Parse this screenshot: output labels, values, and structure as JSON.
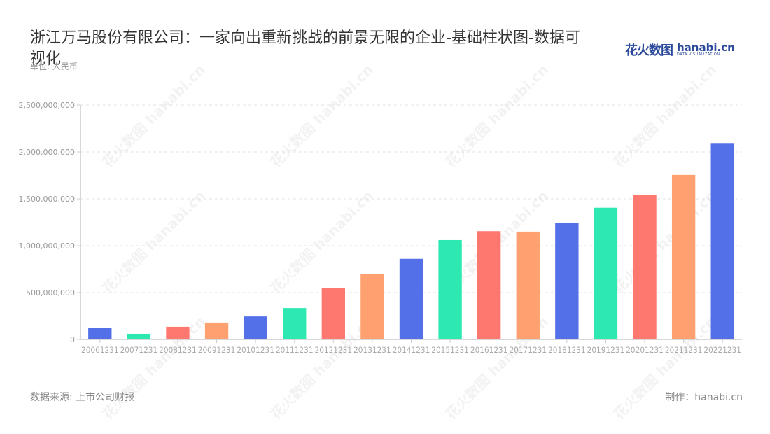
{
  "header": {
    "title": "浙江万马股份有限公司：一家向出重新挑战的前景无限的企业-基础柱状图-数据可视化",
    "unit": "单位: 人民币"
  },
  "logo": {
    "cn": "花火数图",
    "en": "hanabi.cn",
    "tagline": "DATA VISUALIZATION"
  },
  "footer": {
    "source": "数据来源: 上市公司财报",
    "maker": "制作：hanabi.cn"
  },
  "watermark": "花火数图 hanabi.cn",
  "colors": [
    "#5470e8",
    "#2de8b0",
    "#ff7870",
    "#ffa070"
  ],
  "chart_data": {
    "type": "bar",
    "title": "浙江万马股份有限公司：一家向出重新挑战的前景无限的企业-基础柱状图-数据可视化",
    "xlabel": "",
    "ylabel": "单位: 人民币",
    "ylim": [
      0,
      2500000000
    ],
    "yticks": [
      0,
      500000000,
      1000000000,
      1500000000,
      2000000000,
      2500000000
    ],
    "ytick_labels": [
      "0",
      "500,000,000",
      "1,000,000,000",
      "1,500,000,000",
      "2,000,000,000",
      "2,500,000,000"
    ],
    "grid": true,
    "legend": "none",
    "categories": [
      "20061231",
      "20071231",
      "20081231",
      "20091231",
      "20101231",
      "20111231",
      "20121231",
      "20131231",
      "20141231",
      "20151231",
      "20161231",
      "20171231",
      "20181231",
      "20191231",
      "20201231",
      "20211231",
      "20221231"
    ],
    "values": [
      120000000,
      60000000,
      135000000,
      180000000,
      245000000,
      335000000,
      545000000,
      695000000,
      860000000,
      1060000000,
      1155000000,
      1150000000,
      1240000000,
      1405000000,
      1545000000,
      1755000000,
      2095000000
    ]
  }
}
